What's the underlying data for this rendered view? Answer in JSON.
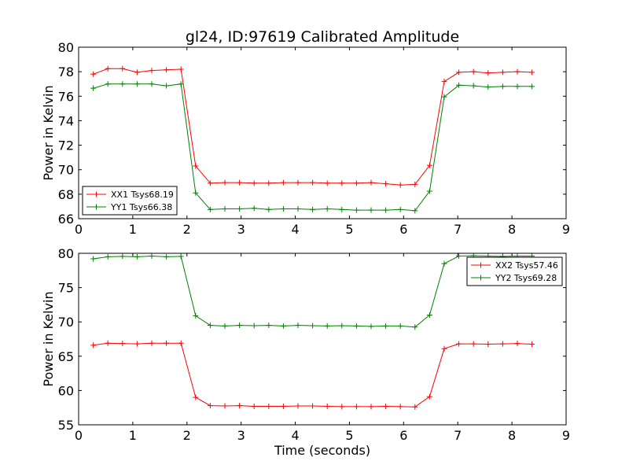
{
  "chart_data": [
    {
      "type": "line",
      "title": "gl24, ID:97619 Calibrated Amplitude",
      "xlabel": "",
      "ylabel": "Power in Kelvin",
      "xlim": [
        0,
        9
      ],
      "ylim": [
        66,
        80
      ],
      "xticks": [
        "0",
        "1",
        "2",
        "3",
        "4",
        "5",
        "6",
        "7",
        "8",
        "9"
      ],
      "yticks": [
        "66",
        "68",
        "70",
        "72",
        "74",
        "76",
        "78",
        "80"
      ],
      "legend_position": "lower-left",
      "x": [
        0.27,
        0.54,
        0.81,
        1.08,
        1.35,
        1.62,
        1.89,
        2.16,
        2.43,
        2.7,
        2.97,
        3.24,
        3.51,
        3.78,
        4.05,
        4.32,
        4.59,
        4.86,
        5.13,
        5.4,
        5.67,
        5.94,
        6.21,
        6.48,
        6.75,
        7.02,
        7.29,
        7.56,
        7.83,
        8.1,
        8.37
      ],
      "series": [
        {
          "name": "XX1 Tsys68.19",
          "color": "#ff0000",
          "values": [
            77.8,
            78.25,
            78.25,
            77.95,
            78.1,
            78.15,
            78.2,
            70.3,
            68.9,
            68.95,
            68.95,
            68.9,
            68.9,
            68.95,
            68.95,
            68.95,
            68.9,
            68.9,
            68.9,
            68.95,
            68.85,
            68.75,
            68.8,
            70.35,
            77.2,
            77.95,
            78.0,
            77.9,
            77.95,
            78.0,
            77.95
          ]
        },
        {
          "name": "YY1 Tsys66.38",
          "color": "#008000",
          "values": [
            76.65,
            77.0,
            77.0,
            77.0,
            77.0,
            76.85,
            77.0,
            68.1,
            66.75,
            66.8,
            66.8,
            66.85,
            66.75,
            66.8,
            66.8,
            66.75,
            66.8,
            66.75,
            66.7,
            66.7,
            66.7,
            66.75,
            66.65,
            68.25,
            75.95,
            76.9,
            76.85,
            76.75,
            76.8,
            76.8,
            76.8
          ]
        }
      ]
    },
    {
      "type": "line",
      "title": "",
      "xlabel": "Time (seconds)",
      "ylabel": "Power in Kelvin",
      "xlim": [
        0,
        9
      ],
      "ylim": [
        55,
        80
      ],
      "xticks": [
        "0",
        "1",
        "2",
        "3",
        "4",
        "5",
        "6",
        "7",
        "8",
        "9"
      ],
      "yticks": [
        "55",
        "60",
        "65",
        "70",
        "75",
        "80"
      ],
      "legend_position": "upper-right",
      "x": [
        0.27,
        0.54,
        0.81,
        1.08,
        1.35,
        1.62,
        1.89,
        2.16,
        2.43,
        2.7,
        2.97,
        3.24,
        3.51,
        3.78,
        4.05,
        4.32,
        4.59,
        4.86,
        5.13,
        5.4,
        5.67,
        5.94,
        6.21,
        6.48,
        6.75,
        7.02,
        7.29,
        7.56,
        7.83,
        8.1,
        8.37
      ],
      "series": [
        {
          "name": "XX2 Tsys57.46",
          "color": "#ff0000",
          "values": [
            66.6,
            66.9,
            66.85,
            66.8,
            66.9,
            66.9,
            66.9,
            59.0,
            57.8,
            57.75,
            57.8,
            57.7,
            57.7,
            57.7,
            57.75,
            57.75,
            57.7,
            57.65,
            57.65,
            57.65,
            57.7,
            57.65,
            57.6,
            59.1,
            66.1,
            66.8,
            66.8,
            66.75,
            66.8,
            66.85,
            66.75
          ]
        },
        {
          "name": "YY2 Tsys69.28",
          "color": "#008000",
          "values": [
            79.2,
            79.5,
            79.55,
            79.5,
            79.6,
            79.5,
            79.55,
            70.9,
            69.5,
            69.4,
            69.5,
            69.45,
            69.5,
            69.4,
            69.5,
            69.45,
            69.4,
            69.45,
            69.4,
            69.35,
            69.4,
            69.4,
            69.25,
            71.0,
            78.5,
            79.6,
            79.65,
            79.6,
            79.55,
            79.6,
            79.6
          ]
        }
      ]
    }
  ]
}
